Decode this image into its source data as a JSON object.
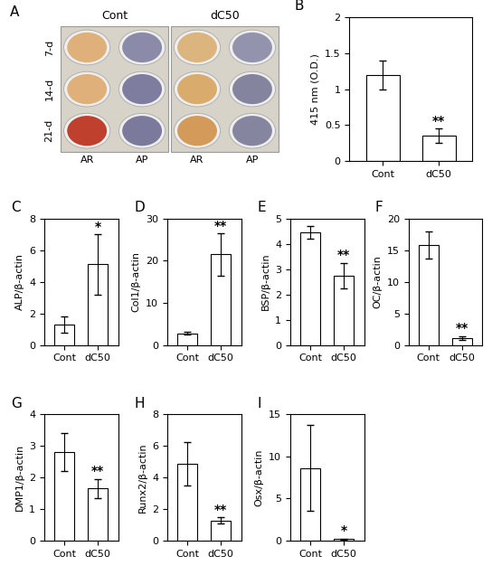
{
  "chart_data": [
    {
      "type": "image_grid",
      "title": "A",
      "columns": [
        "Cont",
        "dC50"
      ],
      "rows": [
        "7-d",
        "14-d",
        "21-d"
      ],
      "stains": [
        "AR",
        "AP"
      ]
    },
    {
      "type": "bar",
      "title": "B",
      "y_label": "415 nm (O.D.)",
      "categories": [
        "Cont",
        "dC50"
      ],
      "values": [
        1.2,
        0.35
      ],
      "errors": [
        0.2,
        0.1
      ],
      "ylim": [
        0,
        2
      ],
      "yticks": [
        0,
        0.5,
        1,
        1.5,
        2
      ],
      "annotations": [
        {
          "category": "dC50",
          "text": "**"
        }
      ]
    },
    {
      "type": "bar",
      "title": "C",
      "y_label": "ALP/β-actin",
      "categories": [
        "Cont",
        "dC50"
      ],
      "values": [
        1.3,
        5.1
      ],
      "errors": [
        0.5,
        1.9
      ],
      "ylim": [
        0,
        8
      ],
      "yticks": [
        0,
        2,
        4,
        6,
        8
      ],
      "annotations": [
        {
          "category": "dC50",
          "text": "*"
        }
      ]
    },
    {
      "type": "bar",
      "title": "D",
      "y_label": "Col1/β-actin",
      "categories": [
        "Cont",
        "dC50"
      ],
      "values": [
        2.8,
        21.5
      ],
      "errors": [
        0.3,
        5
      ],
      "ylim": [
        0,
        30
      ],
      "yticks": [
        0,
        10,
        20,
        30
      ],
      "annotations": [
        {
          "category": "dC50",
          "text": "**"
        }
      ]
    },
    {
      "type": "bar",
      "title": "E",
      "y_label": "BSP/β-actin",
      "categories": [
        "Cont",
        "dC50"
      ],
      "values": [
        4.45,
        2.75
      ],
      "errors": [
        0.25,
        0.5
      ],
      "ylim": [
        0,
        5
      ],
      "yticks": [
        0,
        1,
        2,
        3,
        4,
        5
      ],
      "annotations": [
        {
          "category": "dC50",
          "text": "**"
        }
      ]
    },
    {
      "type": "bar",
      "title": "F",
      "y_label": "OC/β-actin",
      "categories": [
        "Cont",
        "dC50"
      ],
      "values": [
        15.8,
        1.1
      ],
      "errors": [
        2.1,
        0.3
      ],
      "ylim": [
        0,
        20
      ],
      "yticks": [
        0,
        5,
        10,
        15,
        20
      ],
      "annotations": [
        {
          "category": "dC50",
          "text": "**"
        }
      ]
    },
    {
      "type": "bar",
      "title": "G",
      "y_label": "DMP1/β-actin",
      "categories": [
        "Cont",
        "dC50"
      ],
      "values": [
        2.8,
        1.65
      ],
      "errors": [
        0.6,
        0.3
      ],
      "ylim": [
        0,
        4
      ],
      "yticks": [
        0,
        1,
        2,
        3,
        4
      ],
      "annotations": [
        {
          "category": "dC50",
          "text": "**"
        }
      ]
    },
    {
      "type": "bar",
      "title": "H",
      "y_label": "Runx2/β-actin",
      "categories": [
        "Cont",
        "dC50"
      ],
      "values": [
        4.85,
        1.25
      ],
      "errors": [
        1.35,
        0.2
      ],
      "ylim": [
        0,
        8
      ],
      "yticks": [
        0,
        2,
        4,
        6,
        8
      ],
      "annotations": [
        {
          "category": "dC50",
          "text": "**"
        }
      ]
    },
    {
      "type": "bar",
      "title": "I",
      "y_label": "Osx/β-actin",
      "categories": [
        "Cont",
        "dC50"
      ],
      "values": [
        8.6,
        0.15
      ],
      "errors": [
        5.1,
        0.1
      ],
      "ylim": [
        0,
        15
      ],
      "yticks": [
        0,
        5,
        10,
        15
      ],
      "annotations": [
        {
          "category": "dC50",
          "text": "*"
        }
      ]
    }
  ]
}
